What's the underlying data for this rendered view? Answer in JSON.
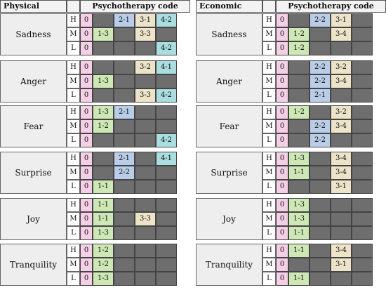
{
  "colors": {
    "zero": "#f4cfe6",
    "c11": "#cde8b5",
    "c12": "#cde8b5",
    "c13": "#cde8b5",
    "c21": "#b9cde9",
    "c22": "#b9cde9",
    "c31": "#ece3c8",
    "c32": "#ece3c8",
    "c33": "#ece3c8",
    "c34": "#ece3c8",
    "c41": "#a9dde0",
    "c42": "#a9dde0",
    "empty": "#6e6e6e"
  },
  "panels": [
    {
      "title": "Physical",
      "code_header": "Psychotherapy code",
      "groups": [
        {
          "emotion": "Sadness",
          "rows": [
            {
              "level": "H",
              "codes": [
                "0",
                "",
                "2-1",
                "3-1",
                "4-2"
              ]
            },
            {
              "level": "M",
              "codes": [
                "0",
                "1-3",
                "",
                "3-3",
                ""
              ]
            },
            {
              "level": "L",
              "codes": [
                "0",
                "",
                "",
                "",
                "4-2"
              ]
            }
          ]
        },
        {
          "emotion": "Anger",
          "rows": [
            {
              "level": "H",
              "codes": [
                "0",
                "",
                "",
                "3-2",
                "4-1"
              ]
            },
            {
              "level": "M",
              "codes": [
                "0",
                "1-3",
                "",
                "",
                ""
              ]
            },
            {
              "level": "L",
              "codes": [
                "0",
                "",
                "",
                "3-3",
                "4-2"
              ]
            }
          ]
        },
        {
          "emotion": "Fear",
          "rows": [
            {
              "level": "H",
              "codes": [
                "0",
                "1-3",
                "2-1",
                "",
                ""
              ]
            },
            {
              "level": "M",
              "codes": [
                "0",
                "1-2",
                "",
                "",
                ""
              ]
            },
            {
              "level": "L",
              "codes": [
                "0",
                "",
                "",
                "",
                "4-2"
              ]
            }
          ]
        },
        {
          "emotion": "Surprise",
          "rows": [
            {
              "level": "H",
              "codes": [
                "0",
                "",
                "2-1",
                "",
                "4-1"
              ]
            },
            {
              "level": "M",
              "codes": [
                "0",
                "",
                "2-2",
                "",
                ""
              ]
            },
            {
              "level": "L",
              "codes": [
                "0",
                "1-1",
                "",
                "",
                ""
              ]
            }
          ]
        },
        {
          "emotion": "Joy",
          "rows": [
            {
              "level": "H",
              "codes": [
                "0",
                "1-1",
                "",
                "",
                ""
              ]
            },
            {
              "level": "M",
              "codes": [
                "0",
                "1-1",
                "",
                "3-3",
                ""
              ]
            },
            {
              "level": "L",
              "codes": [
                "0",
                "1-3",
                "",
                "",
                ""
              ]
            }
          ]
        },
        {
          "emotion": "Tranquility",
          "rows": [
            {
              "level": "H",
              "codes": [
                "0",
                "1-2",
                "",
                "",
                ""
              ]
            },
            {
              "level": "M",
              "codes": [
                "0",
                "1-2",
                "",
                "",
                ""
              ]
            },
            {
              "level": "L",
              "codes": [
                "0",
                "1-3",
                "",
                "",
                ""
              ]
            }
          ]
        }
      ]
    },
    {
      "title": "Economic",
      "code_header": "Psychotherapy code",
      "groups": [
        {
          "emotion": "Sadness",
          "rows": [
            {
              "level": "H",
              "codes": [
                "0",
                "",
                "2-2",
                "3-1",
                ""
              ]
            },
            {
              "level": "M",
              "codes": [
                "0",
                "1-2",
                "",
                "3-4",
                ""
              ]
            },
            {
              "level": "L",
              "codes": [
                "0",
                "1-2",
                "",
                "",
                ""
              ]
            }
          ]
        },
        {
          "emotion": "Anger",
          "rows": [
            {
              "level": "H",
              "codes": [
                "0",
                "",
                "2-2",
                "3-2",
                ""
              ]
            },
            {
              "level": "M",
              "codes": [
                "0",
                "",
                "2-2",
                "3-4",
                ""
              ]
            },
            {
              "level": "L",
              "codes": [
                "0",
                "",
                "2-1",
                "",
                ""
              ]
            }
          ]
        },
        {
          "emotion": "Fear",
          "rows": [
            {
              "level": "H",
              "codes": [
                "0",
                "1-2",
                "",
                "3-2",
                ""
              ]
            },
            {
              "level": "M",
              "codes": [
                "0",
                "",
                "2-2",
                "3-4",
                ""
              ]
            },
            {
              "level": "L",
              "codes": [
                "0",
                "",
                "2-2",
                "",
                ""
              ]
            }
          ]
        },
        {
          "emotion": "Surprise",
          "rows": [
            {
              "level": "H",
              "codes": [
                "0",
                "1-3",
                "",
                "3-4",
                ""
              ]
            },
            {
              "level": "M",
              "codes": [
                "0",
                "1-1",
                "",
                "3-4",
                ""
              ]
            },
            {
              "level": "L",
              "codes": [
                "0",
                "",
                "",
                "3-1",
                ""
              ]
            }
          ]
        },
        {
          "emotion": "Joy",
          "rows": [
            {
              "level": "H",
              "codes": [
                "0",
                "1-3",
                "",
                "",
                ""
              ]
            },
            {
              "level": "M",
              "codes": [
                "0",
                "1-3",
                "",
                "",
                ""
              ]
            },
            {
              "level": "L",
              "codes": [
                "0",
                "1-1",
                "",
                "",
                ""
              ]
            }
          ]
        },
        {
          "emotion": "Tranquility",
          "rows": [
            {
              "level": "H",
              "codes": [
                "0",
                "1-1",
                "",
                "3-4",
                ""
              ]
            },
            {
              "level": "M",
              "codes": [
                "0",
                "",
                "",
                "3-1",
                ""
              ]
            },
            {
              "level": "L",
              "codes": [
                "0",
                "1-1",
                "",
                "",
                ""
              ]
            }
          ]
        }
      ]
    }
  ]
}
